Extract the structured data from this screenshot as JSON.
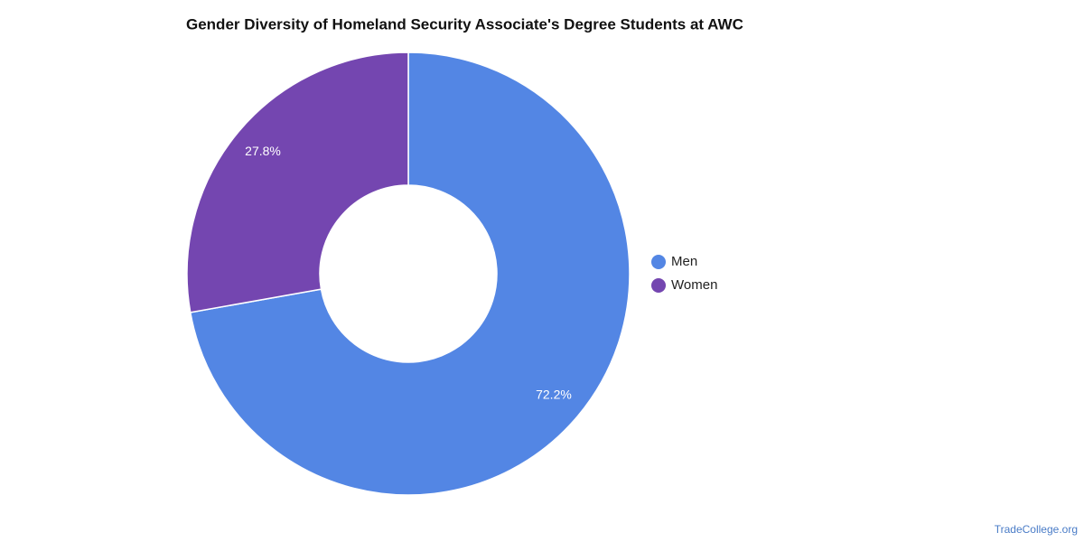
{
  "chart_data": {
    "type": "donut",
    "title": "Gender Diversity of Homeland Security Associate's Degree Students at AWC",
    "categories": [
      "Men",
      "Women"
    ],
    "values": [
      72.2,
      27.8
    ],
    "value_labels": [
      "72.2%",
      "27.8%"
    ],
    "colors": [
      "#5386e4",
      "#7446b0"
    ],
    "legend": "right",
    "source": "TradeCollege.org"
  }
}
